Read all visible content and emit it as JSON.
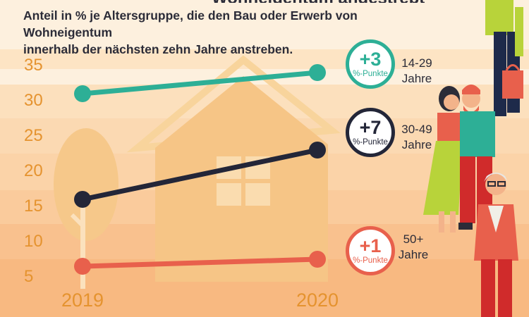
{
  "chart_data": {
    "type": "line",
    "title": "",
    "subtitle": "Anteil in % je Altersgruppe, die den Bau oder Erwerb von Wohneigentum\ninnerhalb der nächsten zehn Jahre anstreben.",
    "categories": [
      "2019",
      "2020"
    ],
    "y_ticks": [
      "5",
      "10",
      "15",
      "20",
      "25",
      "30",
      "35"
    ],
    "ylim": [
      5,
      37
    ],
    "series": [
      {
        "name": "14-29 Jahre",
        "values": [
          31,
          34
        ],
        "color": "#2daf96",
        "change": "+3",
        "change_unit": "%-Punkte"
      },
      {
        "name": "30-49 Jahre",
        "values": [
          16,
          23
        ],
        "color": "#232638",
        "change": "+7",
        "change_unit": "%-Punkte"
      },
      {
        "name": "50+ Jahre",
        "values": [
          6.5,
          7.5
        ],
        "color": "#e8604c",
        "change": "+1",
        "change_unit": "%-Punkte"
      }
    ]
  },
  "labels": {
    "group1": "14-29\nJahre",
    "group2": "30-49\nJahre",
    "group3": "50+\nJahre"
  }
}
